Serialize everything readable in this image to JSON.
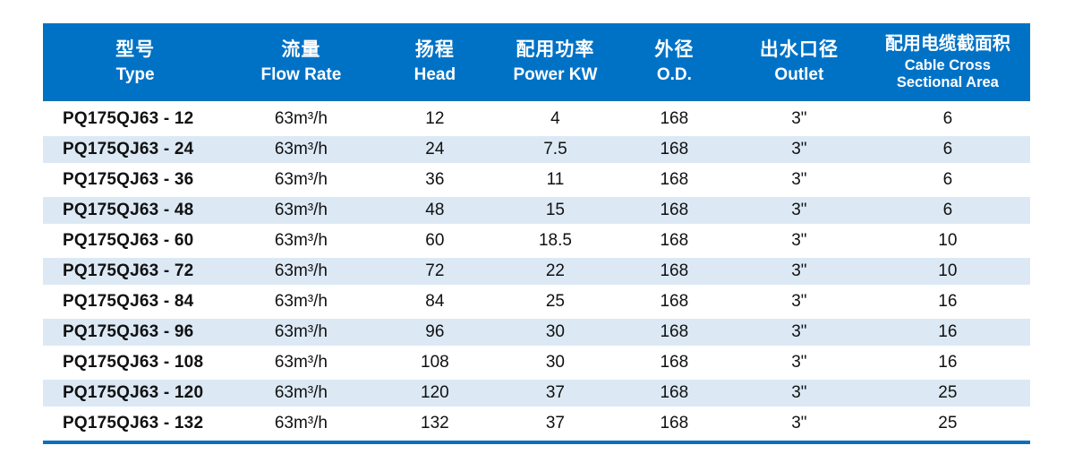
{
  "colors": {
    "header_bg": "#0072c6",
    "header_text": "#ffffff",
    "row_stripe": "#dce9f5",
    "row_text": "#111111",
    "bottom_rule": "#0a6fbf"
  },
  "table": {
    "columns": [
      {
        "zh": "型号",
        "en": [
          "Type"
        ]
      },
      {
        "zh": "流量",
        "en": [
          "Flow Rate"
        ]
      },
      {
        "zh": "扬程",
        "en": [
          "Head"
        ]
      },
      {
        "zh": "配用功率",
        "en": [
          "Power KW"
        ]
      },
      {
        "zh": "外径",
        "en": [
          "O.D."
        ]
      },
      {
        "zh": "出水口径",
        "en": [
          "Outlet"
        ]
      },
      {
        "zh": "配用电缆截面积",
        "en": [
          "Cable Cross",
          "Sectional Area"
        ]
      }
    ],
    "rows": [
      [
        "PQ175QJ63 - 12",
        "63m³/h",
        "12",
        "4",
        "168",
        "3\"",
        "6"
      ],
      [
        "PQ175QJ63 - 24",
        "63m³/h",
        "24",
        "7.5",
        "168",
        "3\"",
        "6"
      ],
      [
        "PQ175QJ63 - 36",
        "63m³/h",
        "36",
        "11",
        "168",
        "3\"",
        "6"
      ],
      [
        "PQ175QJ63 - 48",
        "63m³/h",
        "48",
        "15",
        "168",
        "3\"",
        "6"
      ],
      [
        "PQ175QJ63 - 60",
        "63m³/h",
        "60",
        "18.5",
        "168",
        "3\"",
        "10"
      ],
      [
        "PQ175QJ63 - 72",
        "63m³/h",
        "72",
        "22",
        "168",
        "3\"",
        "10"
      ],
      [
        "PQ175QJ63 - 84",
        "63m³/h",
        "84",
        "25",
        "168",
        "3\"",
        "16"
      ],
      [
        "PQ175QJ63 - 96",
        "63m³/h",
        "96",
        "30",
        "168",
        "3\"",
        "16"
      ],
      [
        "PQ175QJ63 - 108",
        "63m³/h",
        "108",
        "30",
        "168",
        "3\"",
        "16"
      ],
      [
        "PQ175QJ63 - 120",
        "63m³/h",
        "120",
        "37",
        "168",
        "3\"",
        "25"
      ],
      [
        "PQ175QJ63 - 132",
        "63m³/h",
        "132",
        "37",
        "168",
        "3\"",
        "25"
      ]
    ],
    "cell_names": [
      "cell-type",
      "cell-flow-rate",
      "cell-head",
      "cell-power-kw",
      "cell-od",
      "cell-outlet",
      "cell-cable-area"
    ]
  }
}
